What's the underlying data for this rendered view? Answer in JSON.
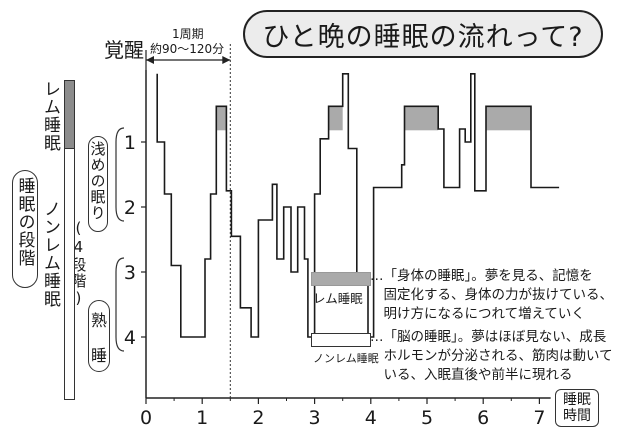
{
  "title": "ひと晩の睡眠の流れって?",
  "cycle_label": "1周期",
  "cycle_range": "約90〜120分",
  "y_top_label": "覚醒",
  "x_unit_line1": "睡眠",
  "x_unit_line2": "時間",
  "left_labels": {
    "sleep_stage": "睡眠の段階",
    "rem": "レム睡眠",
    "nonrem_main": "ノンレム睡眠",
    "nonrem_paren": "(4段階)",
    "light": "浅めの眠り",
    "deep_a": "熟",
    "deep_b": "睡"
  },
  "legend": {
    "rem_label": "レム睡眠",
    "rem_desc": "…「身体の睡眠」。夢を見る、記憶を\n　固定化する、身体の力が抜けている、\n　明け方になるにつれて増えていく",
    "nonrem_label": "ノンレム睡眠",
    "nonrem_desc": "…「脳の睡眠」。夢はほぼ見ない、成長\n　ホルモンが分泌される、筋肉は動いて\n　いる、入眠直後や前半に現れる",
    "rem_color": "#aaaaaa"
  },
  "chart_data": {
    "type": "line",
    "xlabel": "睡眠時間",
    "ylabel": "覚醒",
    "x_ticks": [
      "0",
      "1",
      "2",
      "3",
      "4",
      "5",
      "6",
      "7"
    ],
    "y_ticks": [
      "1",
      "2",
      "3",
      "4"
    ],
    "xlim": [
      0,
      7
    ],
    "ylim_top_to_bottom": [
      "覚醒",
      "4"
    ],
    "cycle_marker_x": 1.5,
    "stage_path": [
      [
        0.2,
        -0.05
      ],
      [
        0.2,
        1.0
      ],
      [
        0.33,
        1.0
      ],
      [
        0.33,
        1.8
      ],
      [
        0.45,
        1.8
      ],
      [
        0.45,
        2.9
      ],
      [
        0.62,
        2.9
      ],
      [
        0.62,
        4.0
      ],
      [
        1.05,
        4.0
      ],
      [
        1.05,
        2.8
      ],
      [
        1.15,
        2.8
      ],
      [
        1.15,
        1.8
      ],
      [
        1.25,
        1.8
      ],
      [
        1.25,
        0.45
      ],
      [
        1.43,
        0.45
      ],
      [
        1.43,
        1.75
      ],
      [
        1.52,
        1.75
      ],
      [
        1.52,
        2.45
      ],
      [
        1.68,
        2.45
      ],
      [
        1.68,
        3.55
      ],
      [
        1.87,
        3.55
      ],
      [
        1.87,
        4.0
      ],
      [
        2.0,
        4.0
      ],
      [
        2.0,
        2.2
      ],
      [
        2.25,
        2.2
      ],
      [
        2.25,
        1.65
      ],
      [
        2.33,
        1.65
      ],
      [
        2.33,
        2.8
      ],
      [
        2.45,
        2.8
      ],
      [
        2.45,
        2.0
      ],
      [
        2.58,
        2.0
      ],
      [
        2.58,
        3.0
      ],
      [
        2.7,
        3.0
      ],
      [
        2.7,
        2.0
      ],
      [
        2.82,
        2.0
      ],
      [
        2.82,
        2.8
      ],
      [
        2.88,
        2.8
      ],
      [
        2.88,
        4.0
      ],
      [
        3.0,
        4.0
      ],
      [
        3.0,
        1.8
      ],
      [
        3.1,
        1.8
      ],
      [
        3.1,
        0.95
      ],
      [
        3.25,
        0.95
      ],
      [
        3.25,
        0.45
      ],
      [
        3.5,
        0.45
      ],
      [
        3.5,
        -0.05
      ],
      [
        3.6,
        -0.05
      ],
      [
        3.6,
        1.1
      ],
      [
        3.75,
        1.1
      ],
      [
        3.75,
        3.2
      ],
      [
        3.95,
        3.2
      ],
      [
        3.95,
        4.0
      ],
      [
        4.05,
        4.0
      ],
      [
        4.05,
        1.7
      ],
      [
        4.55,
        1.7
      ],
      [
        4.55,
        1.35
      ],
      [
        4.6,
        1.35
      ],
      [
        4.6,
        0.45
      ],
      [
        5.2,
        0.45
      ],
      [
        5.2,
        0.8
      ],
      [
        5.3,
        0.8
      ],
      [
        5.3,
        1.7
      ],
      [
        5.58,
        1.7
      ],
      [
        5.58,
        0.8
      ],
      [
        5.68,
        0.8
      ],
      [
        5.68,
        1.0
      ],
      [
        5.78,
        1.0
      ],
      [
        5.78,
        -0.05
      ],
      [
        5.85,
        -0.05
      ],
      [
        5.85,
        1.75
      ],
      [
        6.05,
        1.75
      ],
      [
        6.05,
        0.45
      ],
      [
        6.85,
        0.45
      ],
      [
        6.85,
        1.7
      ],
      [
        7.35,
        1.7
      ]
    ],
    "rem_segments": [
      {
        "x_start": 1.25,
        "x_end": 1.43
      },
      {
        "x_start": 3.25,
        "x_end": 3.5
      },
      {
        "x_start": 4.6,
        "x_end": 5.2
      },
      {
        "x_start": 6.05,
        "x_end": 6.85
      }
    ]
  }
}
